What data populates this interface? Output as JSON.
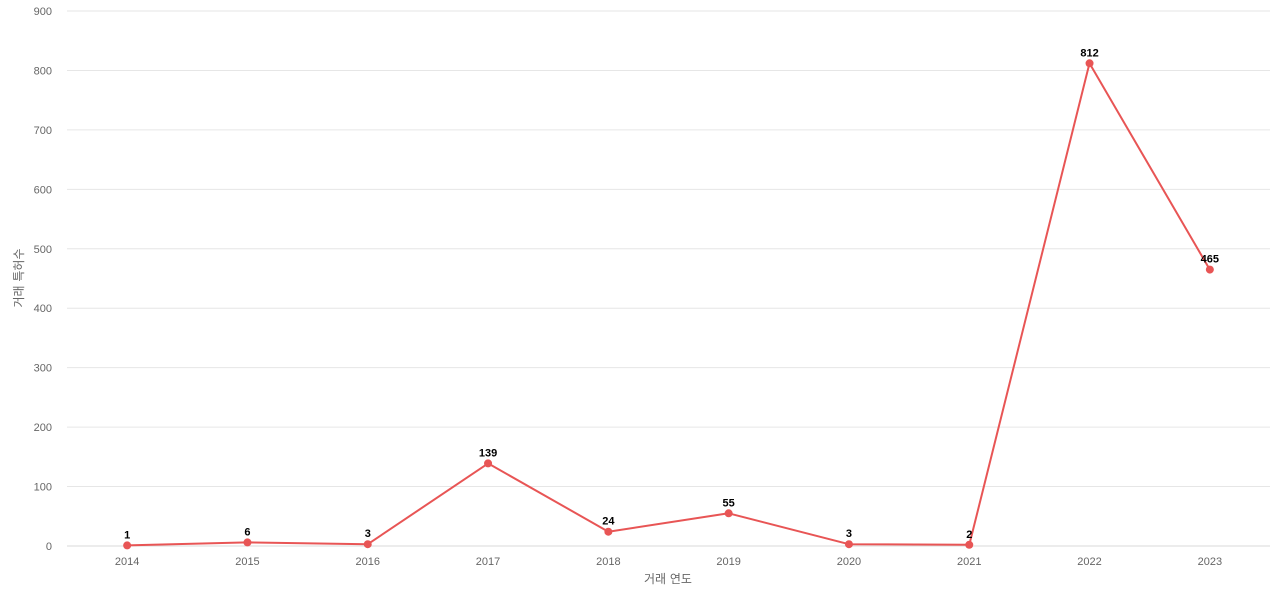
{
  "chart_data": {
    "type": "line",
    "title": "",
    "xlabel": "거래 연도",
    "ylabel": "거래 특허수",
    "categories": [
      "2014",
      "2015",
      "2016",
      "2017",
      "2018",
      "2019",
      "2020",
      "2021",
      "2022",
      "2023"
    ],
    "series": [
      {
        "values": [
          1,
          6,
          3,
          139,
          24,
          55,
          3,
          2,
          812,
          465
        ],
        "color": "#e85555"
      }
    ],
    "ylim": [
      0,
      900
    ],
    "yticks": [
      0,
      100,
      200,
      300,
      400,
      500,
      600,
      700,
      800,
      900
    ],
    "grid": true,
    "legend": "none",
    "data_labels": true
  }
}
